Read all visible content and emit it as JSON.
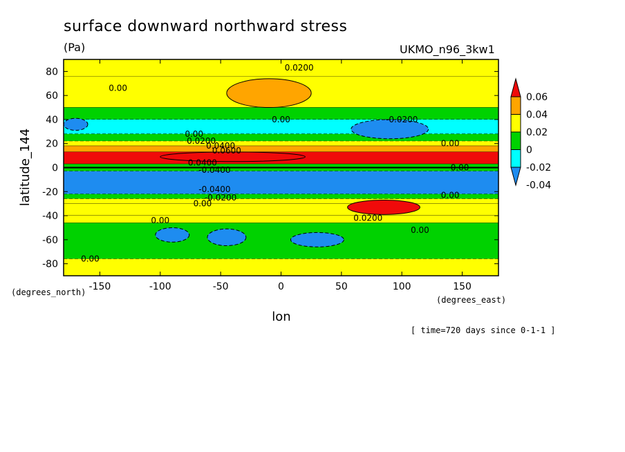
{
  "chart_data": {
    "type": "heatmap",
    "title": "surface downward northward stress",
    "units": "(Pa)",
    "model": "UKMO_n96_3kw1",
    "xlabel": "lon",
    "ylabel": "latitude_144",
    "x_units": "(degrees_east)",
    "y_units": "(degrees_north)",
    "time_note": "[ time=720 days since 0-1-1 ]",
    "xlim": [
      -180,
      180
    ],
    "ylim": [
      -90,
      90
    ],
    "x_ticks": [
      -150,
      -100,
      -50,
      0,
      50,
      100,
      150
    ],
    "y_ticks": [
      80,
      60,
      40,
      20,
      0,
      -20,
      -40,
      -60,
      -80
    ],
    "x_tick_labels": [
      "-150",
      "-100",
      "-50",
      "0",
      "50",
      "100",
      "150"
    ],
    "y_tick_labels": [
      "80",
      "60",
      "40",
      "20",
      "0",
      "-20",
      "-40",
      "-60",
      "-80"
    ],
    "colorbar": {
      "levels": [
        -0.06,
        -0.04,
        -0.02,
        0,
        0.02,
        0.04,
        0.06
      ],
      "labels": [
        "0.06",
        "0.04",
        "0.02",
        "0",
        "-0.02",
        "-0.04"
      ],
      "colors": [
        "#1e8cf0",
        "#00ffff",
        "#00d200",
        "#ffff00",
        "#ffa500",
        "#f00a0a"
      ],
      "extend": "both"
    },
    "zonal_bands": [
      {
        "lat": [
          76,
          90
        ],
        "value": 0.005
      },
      {
        "lat": [
          50,
          76
        ],
        "value": 0.008
      },
      {
        "lat": [
          40,
          50
        ],
        "value": -0.005
      },
      {
        "lat": [
          28,
          40
        ],
        "value": -0.025
      },
      {
        "lat": [
          22,
          28
        ],
        "value": -0.01
      },
      {
        "lat": [
          18,
          22
        ],
        "value": 0.01
      },
      {
        "lat": [
          13,
          18
        ],
        "value": 0.03
      },
      {
        "lat": [
          3,
          13
        ],
        "value": 0.05
      },
      {
        "lat": [
          -3,
          3
        ],
        "value": -0.015
      },
      {
        "lat": [
          -22,
          -3
        ],
        "value": -0.045
      },
      {
        "lat": [
          -26,
          -22
        ],
        "value": -0.015
      },
      {
        "lat": [
          -30,
          -26
        ],
        "value": 0.01
      },
      {
        "lat": [
          -40,
          -30
        ],
        "value": 0.015
      },
      {
        "lat": [
          -46,
          -40
        ],
        "value": 0.008
      },
      {
        "lat": [
          -76,
          -46
        ],
        "value": -0.015
      },
      {
        "lat": [
          -90,
          -76
        ],
        "value": 0.008
      }
    ],
    "features": [
      {
        "lon": -10,
        "lat": 62,
        "value": 0.025,
        "dlon": 35,
        "dlat": 12
      },
      {
        "lon": 90,
        "lat": 32,
        "value": -0.045,
        "dlon": 32,
        "dlat": 8
      },
      {
        "lon": -40,
        "lat": 9,
        "value": 0.065,
        "dlon": 60,
        "dlat": 4
      },
      {
        "lon": 85,
        "lat": -33,
        "value": 0.045,
        "dlon": 30,
        "dlat": 6
      },
      {
        "lon": -90,
        "lat": -56,
        "value": -0.045,
        "dlon": 14,
        "dlat": 6
      },
      {
        "lon": -45,
        "lat": -58,
        "value": -0.045,
        "dlon": 16,
        "dlat": 7
      },
      {
        "lon": 30,
        "lat": -60,
        "value": -0.045,
        "dlon": 22,
        "dlat": 6
      },
      {
        "lon": -170,
        "lat": 36,
        "value": -0.045,
        "dlon": 10,
        "dlat": 5
      }
    ],
    "contour_labels": [
      {
        "text": "0.0200",
        "lon": 15,
        "lat": 83
      },
      {
        "text": "0.00",
        "lon": -135,
        "lat": 66
      },
      {
        "text": "-0.0200",
        "lon": 100,
        "lat": 40
      },
      {
        "text": "0.00",
        "lon": 0,
        "lat": 40
      },
      {
        "text": "0.00",
        "lon": -72,
        "lat": 28
      },
      {
        "text": "0.0200",
        "lon": -66,
        "lat": 22
      },
      {
        "text": "0.0400",
        "lon": -50,
        "lat": 18
      },
      {
        "text": "0.0600",
        "lon": -45,
        "lat": 14
      },
      {
        "text": "0.00",
        "lon": 140,
        "lat": 20
      },
      {
        "text": "0.0400",
        "lon": -65,
        "lat": 4
      },
      {
        "text": "-0.0400",
        "lon": -55,
        "lat": -2
      },
      {
        "text": "0.00",
        "lon": 148,
        "lat": 0
      },
      {
        "text": "-0.0400",
        "lon": -55,
        "lat": -18
      },
      {
        "text": "-0.0200",
        "lon": -50,
        "lat": -25
      },
      {
        "text": "0.00",
        "lon": -65,
        "lat": -30
      },
      {
        "text": "0.00",
        "lon": 140,
        "lat": -23
      },
      {
        "text": "0.0200",
        "lon": 72,
        "lat": -42
      },
      {
        "text": "0.00",
        "lon": -100,
        "lat": -44
      },
      {
        "text": "0.00",
        "lon": 115,
        "lat": -52
      },
      {
        "text": "0.00",
        "lon": -158,
        "lat": -76
      }
    ]
  }
}
